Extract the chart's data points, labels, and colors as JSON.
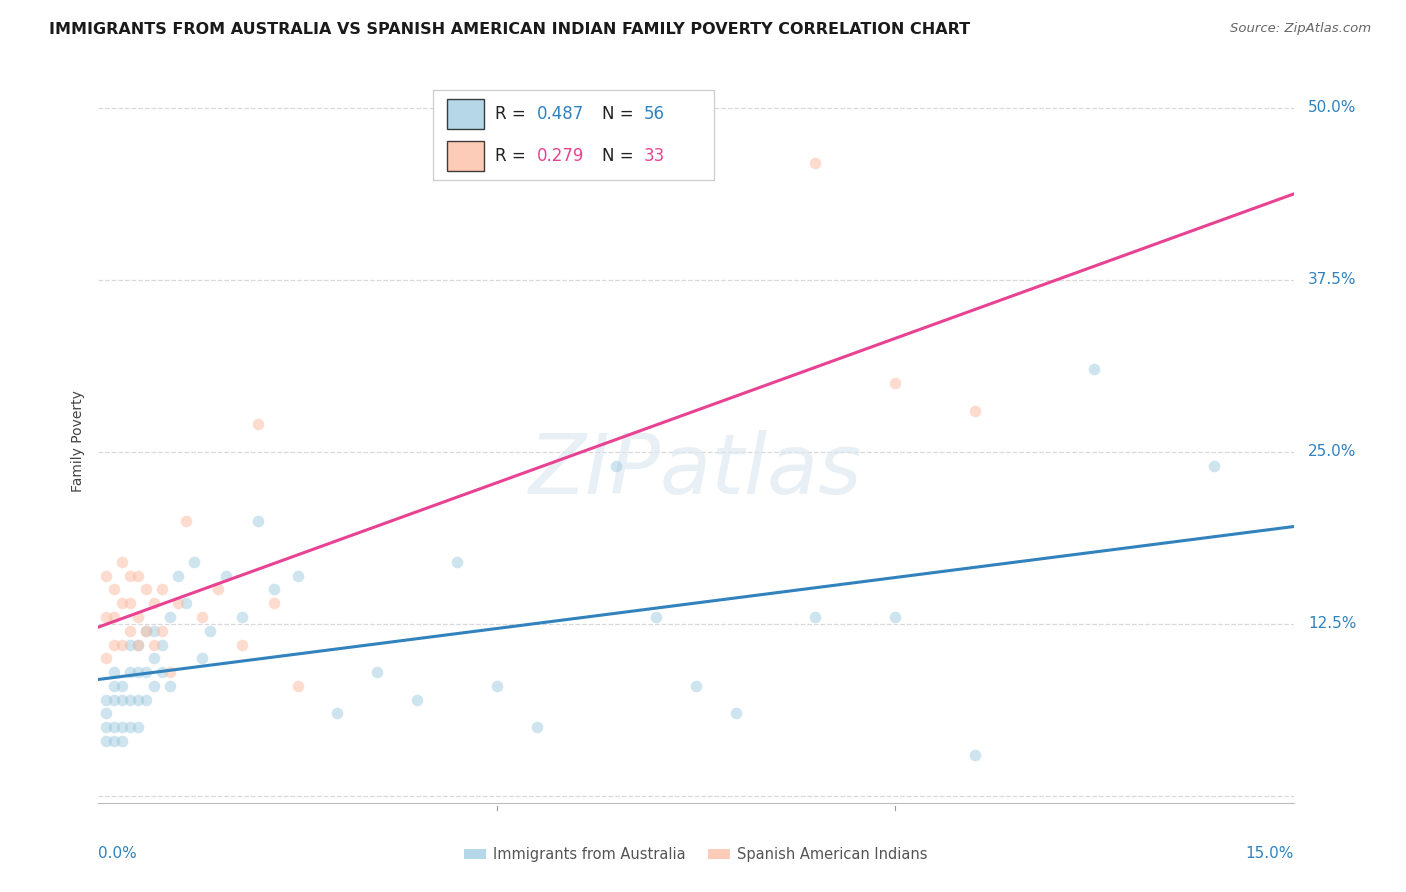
{
  "title": "IMMIGRANTS FROM AUSTRALIA VS SPANISH AMERICAN INDIAN FAMILY POVERTY CORRELATION CHART",
  "source": "Source: ZipAtlas.com",
  "ylabel": "Family Poverty",
  "xlim": [
    0.0,
    0.15
  ],
  "ylim": [
    -0.005,
    0.52
  ],
  "background_color": "#ffffff",
  "grid_color": "#d9d9d9",
  "blue_color": "#9ecae1",
  "pink_color": "#fcbba1",
  "blue_line_color": "#3182bd",
  "pink_line_color": "#e84393",
  "blue_label": "Immigrants from Australia",
  "pink_label": "Spanish American Indians",
  "watermark": "ZIPatlas",
  "blue_x": [
    0.001,
    0.001,
    0.001,
    0.001,
    0.002,
    0.002,
    0.002,
    0.002,
    0.002,
    0.003,
    0.003,
    0.003,
    0.003,
    0.004,
    0.004,
    0.004,
    0.004,
    0.005,
    0.005,
    0.005,
    0.005,
    0.006,
    0.006,
    0.006,
    0.007,
    0.007,
    0.007,
    0.008,
    0.008,
    0.009,
    0.009,
    0.01,
    0.011,
    0.012,
    0.013,
    0.014,
    0.016,
    0.018,
    0.02,
    0.022,
    0.025,
    0.03,
    0.035,
    0.04,
    0.045,
    0.05,
    0.055,
    0.065,
    0.07,
    0.075,
    0.08,
    0.09,
    0.1,
    0.11,
    0.125,
    0.14
  ],
  "blue_y": [
    0.04,
    0.05,
    0.06,
    0.07,
    0.04,
    0.05,
    0.07,
    0.08,
    0.09,
    0.04,
    0.05,
    0.07,
    0.08,
    0.05,
    0.07,
    0.09,
    0.11,
    0.05,
    0.07,
    0.09,
    0.11,
    0.07,
    0.09,
    0.12,
    0.08,
    0.1,
    0.12,
    0.09,
    0.11,
    0.08,
    0.13,
    0.16,
    0.14,
    0.17,
    0.1,
    0.12,
    0.16,
    0.13,
    0.2,
    0.15,
    0.16,
    0.06,
    0.09,
    0.07,
    0.17,
    0.08,
    0.05,
    0.24,
    0.13,
    0.08,
    0.06,
    0.13,
    0.13,
    0.03,
    0.31,
    0.24
  ],
  "pink_x": [
    0.001,
    0.001,
    0.001,
    0.002,
    0.002,
    0.002,
    0.003,
    0.003,
    0.003,
    0.004,
    0.004,
    0.004,
    0.005,
    0.005,
    0.005,
    0.006,
    0.006,
    0.007,
    0.007,
    0.008,
    0.008,
    0.009,
    0.01,
    0.011,
    0.013,
    0.015,
    0.018,
    0.02,
    0.022,
    0.025,
    0.09,
    0.1,
    0.11
  ],
  "pink_y": [
    0.1,
    0.13,
    0.16,
    0.11,
    0.13,
    0.15,
    0.11,
    0.14,
    0.17,
    0.12,
    0.14,
    0.16,
    0.11,
    0.13,
    0.16,
    0.12,
    0.15,
    0.11,
    0.14,
    0.12,
    0.15,
    0.09,
    0.14,
    0.2,
    0.13,
    0.15,
    0.11,
    0.27,
    0.14,
    0.08,
    0.46,
    0.3,
    0.28
  ],
  "marker_size": 70,
  "marker_alpha": 0.5,
  "line_width": 2.2,
  "title_fontsize": 11.5,
  "axis_label_fontsize": 10,
  "tick_fontsize": 11,
  "source_fontsize": 9.5
}
